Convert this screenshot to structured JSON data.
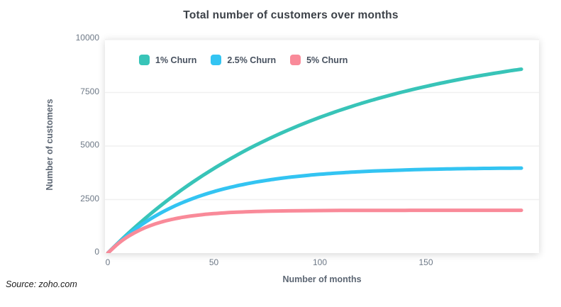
{
  "header": {
    "title": "Total number of customers over months"
  },
  "footer": {
    "source": "Source: zoho.com"
  },
  "colors": {
    "series_teal": "#38C4B8",
    "series_blue": "#33C4F2",
    "series_pink": "#F98A99",
    "gridline": "#F0F0F0",
    "plot_background": "#FFFFFF",
    "title_text": "#3C4148",
    "tick_text": "#6D7886",
    "axis_title_text": "#5C6673",
    "legend_text": "#47515F",
    "source_text": "#1C1C1C"
  },
  "chart_data": {
    "type": "line",
    "title": "Total number of customers over months",
    "xlabel": "Number of months",
    "ylabel": "Number of customers",
    "xlim": [
      0,
      202
    ],
    "ylim": [
      0,
      10000
    ],
    "x_ticks": [
      "0",
      "50",
      "100",
      "150"
    ],
    "x_tick_values": [
      0,
      50,
      100,
      150
    ],
    "y_ticks": [
      "0",
      "2500",
      "5000",
      "7500",
      "10000"
    ],
    "y_tick_values": [
      0,
      2500,
      5000,
      7500,
      10000
    ],
    "grid": "horizontal-only",
    "legend_position": "top-left-inside",
    "x": [
      0,
      5,
      10,
      15,
      20,
      25,
      30,
      35,
      40,
      45,
      50,
      55,
      60,
      65,
      70,
      75,
      80,
      85,
      90,
      95,
      100,
      105,
      110,
      115,
      120,
      125,
      130,
      135,
      140,
      145,
      150,
      155,
      160,
      165,
      170,
      175,
      180,
      185,
      190,
      195
    ],
    "series": [
      {
        "name": "1% Churn",
        "color": "#38C4B8",
        "values": [
          0,
          490,
          956,
          1399,
          1821,
          2222,
          2603,
          2966,
          3310,
          3638,
          3950,
          4246,
          4528,
          4797,
          5052,
          5294,
          5525,
          5744,
          5953,
          6151,
          6340,
          6519,
          6690,
          6852,
          7006,
          7153,
          7292,
          7425,
          7551,
          7671,
          7785,
          7894,
          7997,
          8095,
          8189,
          8278,
          8362,
          8442,
          8519,
          8591
        ]
      },
      {
        "name": "2.5% Churn",
        "color": "#33C4F2",
        "values": [
          0,
          476,
          895,
          1264,
          1589,
          1876,
          2128,
          2351,
          2547,
          2720,
          2872,
          3006,
          3124,
          3228,
          3320,
          3401,
          3472,
          3535,
          3590,
          3639,
          3682,
          3720,
          3753,
          3782,
          3808,
          3831,
          3851,
          3869,
          3884,
          3898,
          3910,
          3921,
          3930,
          3939,
          3946,
          3952,
          3958,
          3963,
          3967,
          3971
        ]
      },
      {
        "name": "5% Churn",
        "color": "#F98A99",
        "values": [
          0,
          452,
          802,
          1073,
          1283,
          1445,
          1571,
          1668,
          1743,
          1801,
          1846,
          1881,
          1908,
          1929,
          1945,
          1957,
          1967,
          1974,
          1980,
          1985,
          1988,
          1991,
          1993,
          1994,
          1996,
          1997,
          1997,
          1998,
          1998,
          1999,
          1999,
          1999,
          1999,
          2000,
          2000,
          2000,
          2000,
          2000,
          2000,
          2000
        ]
      }
    ]
  }
}
